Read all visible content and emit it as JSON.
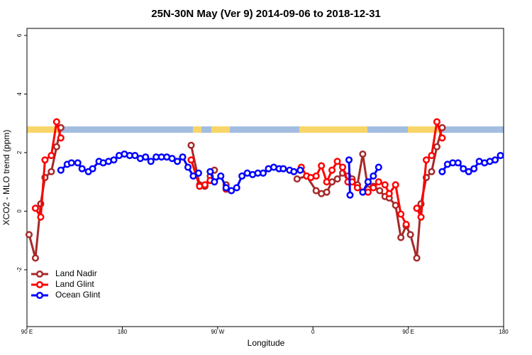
{
  "chart_data": {
    "type": "line",
    "title": "25N-30N May (Ver 9)   2014-09-06 to 2018-12-31",
    "x_label": "Longitude",
    "y_label": "XCO2 - MLO trend (ppm)",
    "xlim": [
      90,
      540
    ],
    "xticks": [
      {
        "value": 90,
        "label": "90 E"
      },
      180,
      {
        "value": 270,
        "label": "90 W"
      },
      {
        "value": 360,
        "label": "0"
      },
      {
        "value": 450,
        "label": "90 E"
      },
      {
        "value": 540,
        "label": "180"
      }
    ],
    "ylim": [
      -3.94,
      6.24
    ],
    "yticks": [
      -2,
      0,
      2,
      4,
      6
    ],
    "legend": "bottom-left",
    "series": [
      {
        "name": "Land Nadir",
        "color": "#a52a2a",
        "x": [
          92,
          98,
          103,
          107,
          113,
          118,
          122,
          null,
          245,
          253,
          258,
          263,
          267,
          null,
          278,
          null,
          345,
          354,
          363,
          368,
          373,
          378,
          383,
          388,
          393,
          397,
          402,
          407,
          412,
          417,
          423,
          428,
          432,
          438,
          443,
          448,
          452,
          458,
          462,
          467,
          472,
          477,
          482
        ],
        "values": [
          -0.8,
          -1.6,
          0.25,
          1.15,
          1.35,
          2.2,
          2.85,
          null,
          2.25,
          0.9,
          0.85,
          1.2,
          1.4,
          null,
          0.9,
          null,
          1.1,
          1.2,
          0.7,
          0.6,
          0.65,
          1.0,
          1.1,
          1.3,
          1.2,
          1.1,
          0.9,
          1.95,
          0.75,
          0.85,
          0.7,
          0.5,
          0.45,
          0.2,
          -0.9,
          -0.5,
          -0.8,
          -1.6,
          0.25,
          1.15,
          1.35,
          2.2,
          2.85
        ]
      },
      {
        "name": "Land Glint",
        "color": "#ff0000",
        "x": [
          98,
          103,
          107,
          113,
          118,
          122,
          null,
          245,
          253,
          258,
          263,
          null,
          278,
          null,
          349,
          354,
          358,
          363,
          368,
          373,
          378,
          383,
          388,
          393,
          397,
          402,
          412,
          417,
          422,
          428,
          432,
          438,
          443,
          448,
          null,
          458,
          462,
          467,
          472,
          477,
          482
        ],
        "values": [
          0.1,
          -0.2,
          1.75,
          1.9,
          3.05,
          2.5,
          null,
          1.75,
          0.85,
          0.9,
          1.05,
          null,
          0.75,
          null,
          1.5,
          1.2,
          1.15,
          1.2,
          1.55,
          1.0,
          1.4,
          1.7,
          1.5,
          1.0,
          1.0,
          0.8,
          0.65,
          0.8,
          1.0,
          0.9,
          0.6,
          0.9,
          -0.1,
          -0.45,
          null,
          0.1,
          -0.2,
          1.75,
          1.9,
          3.05,
          2.5
        ]
      },
      {
        "name": "Ocean Glint",
        "color": "#0000ff",
        "x": [
          122,
          128,
          132,
          138,
          142,
          148,
          152,
          158,
          162,
          167,
          172,
          177,
          182,
          187,
          192,
          197,
          202,
          207,
          212,
          217,
          222,
          227,
          232,
          237,
          242,
          247,
          252,
          null,
          263,
          267,
          273,
          278,
          283,
          288,
          293,
          298,
          303,
          308,
          313,
          318,
          323,
          328,
          332,
          338,
          342,
          348,
          null,
          394,
          395,
          null,
          407,
          412,
          417,
          422,
          null,
          482,
          487,
          492,
          497,
          502,
          507,
          512,
          517,
          522,
          527,
          532,
          537
        ],
        "values": [
          1.4,
          1.6,
          1.65,
          1.65,
          1.45,
          1.35,
          1.45,
          1.7,
          1.65,
          1.7,
          1.75,
          1.9,
          1.95,
          1.9,
          1.9,
          1.8,
          1.85,
          1.7,
          1.85,
          1.85,
          1.85,
          1.8,
          1.7,
          1.85,
          1.5,
          1.2,
          1.3,
          null,
          1.35,
          1.0,
          1.2,
          0.8,
          0.7,
          0.8,
          1.2,
          1.3,
          1.25,
          1.3,
          1.3,
          1.45,
          1.5,
          1.45,
          1.45,
          1.4,
          1.35,
          1.4,
          null,
          1.75,
          0.55,
          null,
          0.65,
          1.0,
          1.2,
          1.5,
          null,
          1.35,
          1.6,
          1.65,
          1.65,
          1.45,
          1.35,
          1.45,
          1.7,
          1.65,
          1.7,
          1.75,
          1.9
        ]
      }
    ]
  }
}
